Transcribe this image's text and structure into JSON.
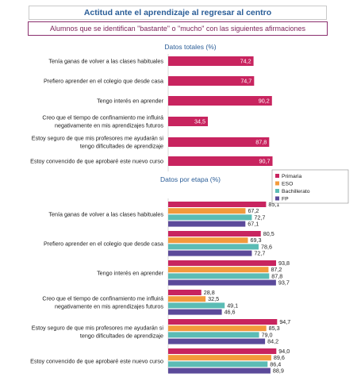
{
  "header": {
    "title": "Actitud ante el aprendizaje al regresar al centro",
    "subtitle": "Alumnos que se identifican \"bastante\" o \"mucho\" con las siguientes afirmaciones"
  },
  "colors": {
    "primaria": "#c8245f",
    "eso": "#f39a3c",
    "bachillerato": "#5bbcb5",
    "fp": "#5b4a9a",
    "total": "#c8245f"
  },
  "chart_data": [
    {
      "type": "bar",
      "orientation": "horizontal",
      "title": "Datos totales (%)",
      "categories": [
        "Tenía ganas de volver a las clases habituales",
        "Prefiero aprender en el colegio que desde casa",
        "Tengo interés en aprender",
        "Creo que el tiempo de confinamiento me influirá negativamente en mis aprendizajes futuros",
        "Estoy seguro de que mis profesores me ayudarán si tengo dificultades de aprendizaje",
        "Estoy convencido de que aprobaré este nuevo curso"
      ],
      "label_lines": [
        [
          "Tenía ganas de volver a las clases habituales"
        ],
        [
          "Prefiero aprender en el colegio que desde casa"
        ],
        [
          "Tengo interés en aprender"
        ],
        [
          "Creo que el tiempo de confinamiento me influirá",
          "negativamente en mis aprendizajes futuros"
        ],
        [
          "Estoy seguro de que mis profesores me ayudarán si",
          "tengo dificultades de aprendizaje"
        ],
        [
          "Estoy convencido de que aprobaré este nuevo curso"
        ]
      ],
      "values": [
        74.2,
        74.7,
        90.2,
        34.5,
        87.8,
        90.7
      ],
      "value_labels": [
        "74,2",
        "74,7",
        "90,2",
        "34,5",
        "87,8",
        "90,7"
      ],
      "xlim": [
        0,
        100
      ]
    },
    {
      "type": "bar",
      "orientation": "horizontal",
      "title": "Datos por etapa (%)",
      "categories": [
        "Tenía ganas de volver a las clases habituales",
        "Prefiero aprender en el colegio que desde casa",
        "Tengo interés en aprender",
        "Creo que el tiempo de confinamiento me influirá negativamente en mis aprendizajes futuros",
        "Estoy seguro de que mis profesores me ayudarán si tengo dificultades de aprendizaje",
        "Estoy convencido de que aprobaré este nuevo curso"
      ],
      "label_lines": [
        [
          "Tenía ganas de volver a las clases habituales"
        ],
        [
          "Prefiero aprender en el colegio que desde casa"
        ],
        [
          "Tengo interés en aprender"
        ],
        [
          "Creo que el tiempo de confinamiento me influirá",
          "negativamente en mis aprendizajes futuros"
        ],
        [
          "Estoy seguro de que mis profesores me ayudarán si",
          "tengo dificultades de aprendizaje"
        ],
        [
          "Estoy convencido de que aprobaré este nuevo curso"
        ]
      ],
      "series": [
        {
          "name": "Primaria",
          "values": [
            85.1,
            80.5,
            93.8,
            28.8,
            94.7,
            94.0
          ],
          "value_labels": [
            "85,1",
            "80,5",
            "93,8",
            "28,8",
            "94,7",
            "94,0"
          ]
        },
        {
          "name": "ESO",
          "values": [
            67.2,
            69.3,
            87.2,
            32.5,
            85.3,
            89.6
          ],
          "value_labels": [
            "67,2",
            "69,3",
            "87,2",
            "32,5",
            "85,3",
            "89,6"
          ]
        },
        {
          "name": "Bachillerato",
          "values": [
            72.7,
            78.6,
            87.8,
            49.1,
            79.0,
            86.4
          ],
          "value_labels": [
            "72,7",
            "78,6",
            "87,8",
            "49,1",
            "79,0",
            "86,4"
          ]
        },
        {
          "name": "FP",
          "values": [
            67.1,
            72.7,
            93.7,
            46.6,
            84.2,
            88.9
          ],
          "value_labels": [
            "67,1",
            "72,7",
            "93,7",
            "46,6",
            "84,2",
            "88,9"
          ]
        }
      ],
      "legend": "top-right",
      "xlim": [
        0,
        100
      ]
    }
  ]
}
